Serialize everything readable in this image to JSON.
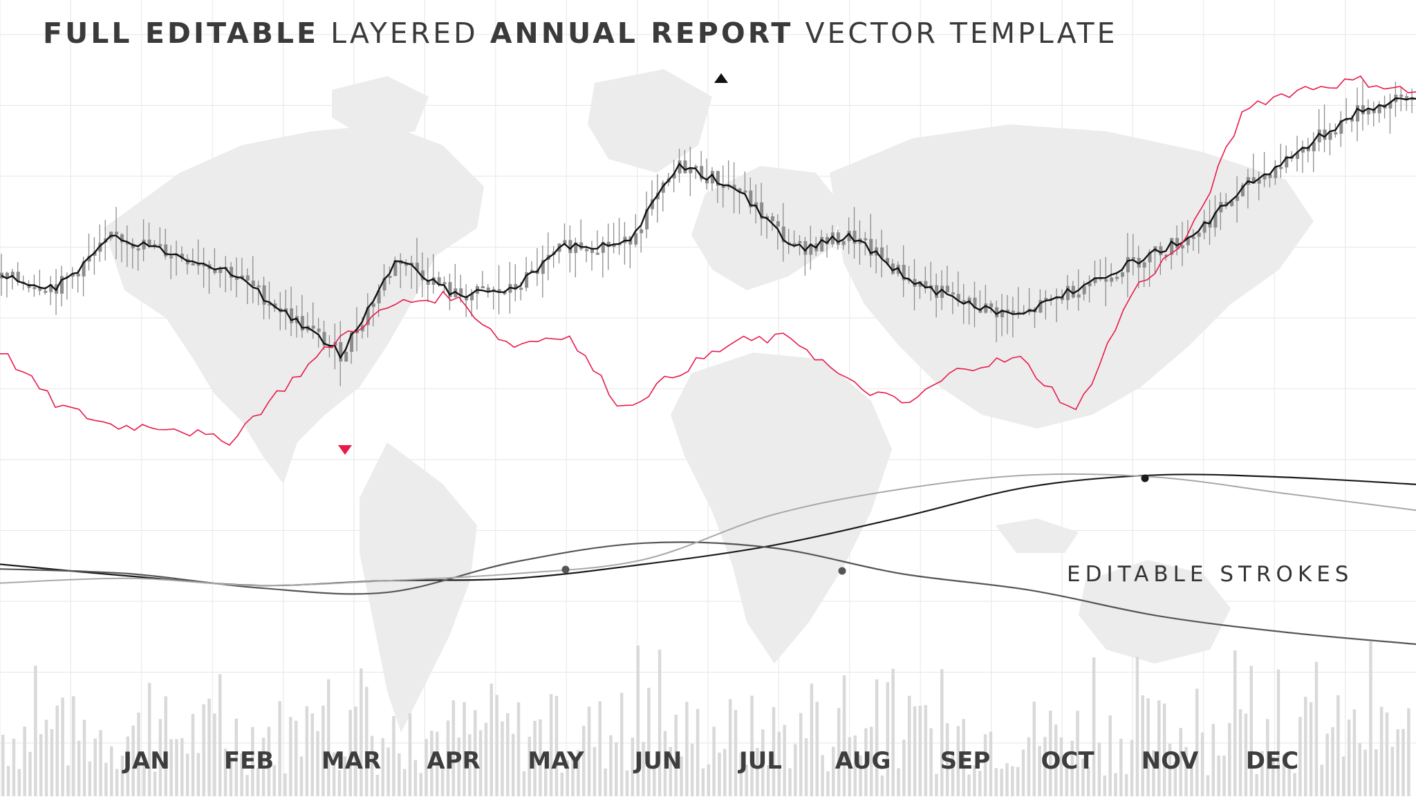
{
  "title": {
    "part1": "FULL EDITABLE",
    "part2": "LAYERED",
    "part3": "ANNUAL REPORT",
    "part4": "VECTOR TEMPLATE"
  },
  "annotation": "EDITABLE STROKES",
  "colors": {
    "background": "#ffffff",
    "grid": "#e6e6e6",
    "map": "#ececec",
    "candle": "#8c8c8c",
    "price_line": "#111111",
    "accent_red": "#e8194a",
    "stroke_dark": "#1a1a1a",
    "stroke_mid": "#555555",
    "stroke_light": "#a8a8a8",
    "volume": "#d9d9d9",
    "text": "#3a3a3a"
  },
  "chart_data": {
    "type": "candlestick",
    "categories": [
      "JAN",
      "FEB",
      "MAR",
      "APR",
      "MAY",
      "JUN",
      "JUL",
      "AUG",
      "SEP",
      "OCT",
      "NOV",
      "DEC"
    ],
    "ylim": [
      0,
      100
    ],
    "grid": true,
    "price_line": [
      52,
      50,
      62,
      58,
      54,
      44,
      34,
      57,
      48,
      49,
      60,
      60,
      79,
      73,
      59,
      62,
      52,
      46,
      43,
      50,
      56,
      62,
      74,
      83,
      92,
      95
    ],
    "red_line": [
      35,
      22,
      17,
      17,
      13,
      26,
      38,
      46,
      48,
      36,
      39,
      21,
      30,
      37,
      38,
      27,
      22,
      31,
      33,
      20,
      49,
      62,
      93,
      97,
      99,
      96
    ],
    "marker_high": "up-triangle",
    "marker_low": "down-triangle",
    "strokes": [
      {
        "name": "dark",
        "values": [
          54,
          49,
          45,
          47,
          48,
          54,
          62,
          74,
          87,
          92,
          91,
          88
        ]
      },
      {
        "name": "mid",
        "values": [
          52,
          50,
          44,
          42,
          55,
          63,
          61,
          50,
          43,
          32,
          25,
          20
        ]
      },
      {
        "name": "light",
        "values": [
          46,
          48,
          45,
          47,
          50,
          56,
          75,
          86,
          92,
          91,
          84,
          77
        ]
      }
    ],
    "volume_series_count": 1
  }
}
